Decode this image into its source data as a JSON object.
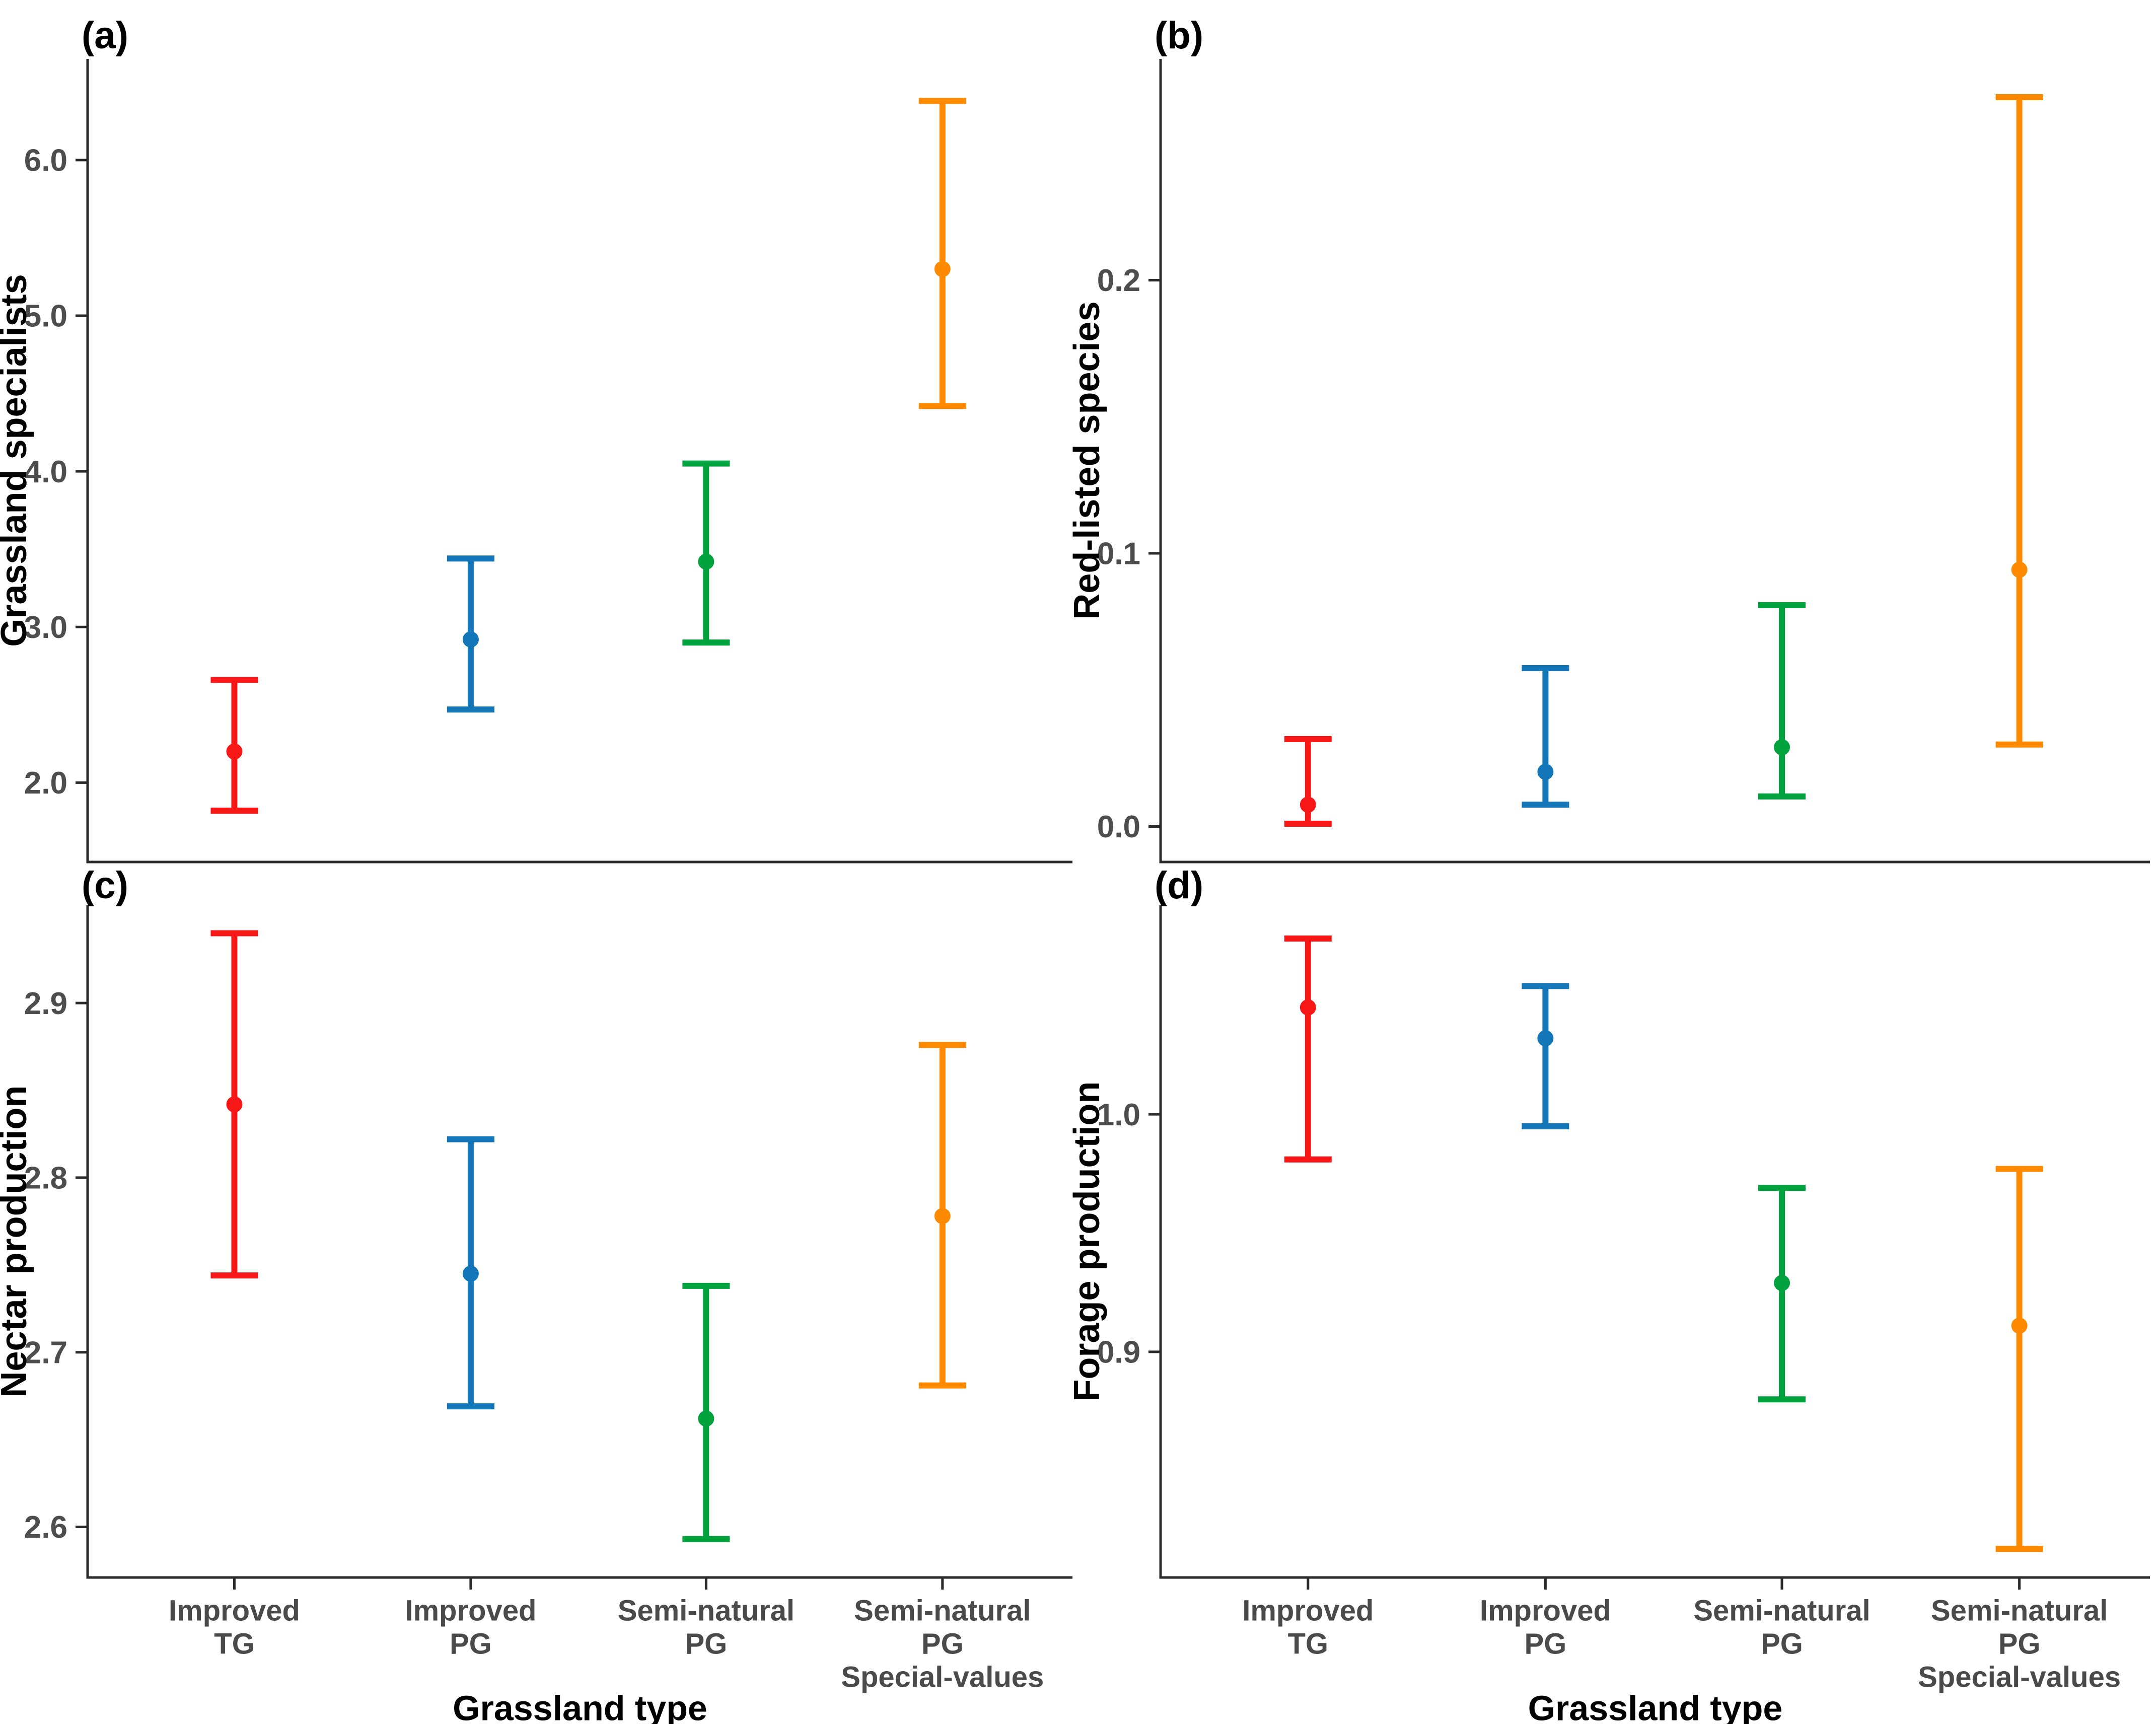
{
  "figure": {
    "background": "#ffffff",
    "axis_color": "#2b2b2b",
    "tick_label_color": "#4d4d4d",
    "category_label_color": "#4a4a4a",
    "title_color": "#000000",
    "x_axis_title": "Grassland type"
  },
  "categories": [
    {
      "name": "improved-tg",
      "label_lines": [
        "Improved",
        "TG"
      ],
      "color": "#f81717"
    },
    {
      "name": "improved-pg",
      "label_lines": [
        "Improved",
        "PG"
      ],
      "color": "#1276b8"
    },
    {
      "name": "semi-natural-pg",
      "label_lines": [
        "Semi-natural",
        "PG"
      ],
      "color": "#00a23e"
    },
    {
      "name": "semi-natural-pg-special-values",
      "label_lines": [
        "Semi-natural",
        "PG",
        "Special-values"
      ],
      "color": "#ff8a00"
    }
  ],
  "chart_data": [
    {
      "type": "scatter",
      "panel": "a",
      "letter": "(a)",
      "ylabel": "Grassland specialists",
      "xlabel": "Grassland type",
      "ylim": [
        1.49,
        6.65
      ],
      "grid": false,
      "yticks": [
        {
          "value": 2.0,
          "label": "2.0"
        },
        {
          "value": 3.0,
          "label": "3.0"
        },
        {
          "value": 4.0,
          "label": "4.0"
        },
        {
          "value": 5.0,
          "label": "5.0"
        },
        {
          "value": 6.0,
          "label": "6.0"
        }
      ],
      "points": [
        {
          "category": "Improved TG",
          "estimate": 2.2,
          "ci_low": 1.82,
          "ci_high": 2.66
        },
        {
          "category": "Improved PG",
          "estimate": 2.92,
          "ci_low": 2.47,
          "ci_high": 3.44
        },
        {
          "category": "Semi-natural PG",
          "estimate": 3.42,
          "ci_low": 2.9,
          "ci_high": 4.05
        },
        {
          "category": "Semi-natural PG Special-values",
          "estimate": 5.3,
          "ci_low": 4.42,
          "ci_high": 6.38
        }
      ]
    },
    {
      "type": "scatter",
      "panel": "b",
      "letter": "(b)",
      "ylabel": "Red-listed species",
      "xlabel": "Grassland type",
      "ylim": [
        -0.013,
        0.281
      ],
      "grid": false,
      "yticks": [
        {
          "value": 0.0,
          "label": "0.0"
        },
        {
          "value": 0.1,
          "label": "0.1"
        },
        {
          "value": 0.2,
          "label": "0.2"
        }
      ],
      "points": [
        {
          "category": "Improved TG",
          "estimate": 0.008,
          "ci_low": 0.001,
          "ci_high": 0.032
        },
        {
          "category": "Improved PG",
          "estimate": 0.02,
          "ci_low": 0.008,
          "ci_high": 0.058
        },
        {
          "category": "Semi-natural PG",
          "estimate": 0.029,
          "ci_low": 0.011,
          "ci_high": 0.081
        },
        {
          "category": "Semi-natural PG Special-values",
          "estimate": 0.094,
          "ci_low": 0.03,
          "ci_high": 0.267
        }
      ]
    },
    {
      "type": "scatter",
      "panel": "c",
      "letter": "(c)",
      "ylabel": "Nectar production",
      "xlabel": "Grassland type",
      "ylim": [
        2.571,
        2.956
      ],
      "grid": false,
      "yticks": [
        {
          "value": 2.6,
          "label": "2.6"
        },
        {
          "value": 2.7,
          "label": "2.7"
        },
        {
          "value": 2.8,
          "label": "2.8"
        },
        {
          "value": 2.9,
          "label": "2.9"
        }
      ],
      "points": [
        {
          "category": "Improved TG",
          "estimate": 2.842,
          "ci_low": 2.744,
          "ci_high": 2.94
        },
        {
          "category": "Improved PG",
          "estimate": 2.745,
          "ci_low": 2.669,
          "ci_high": 2.822
        },
        {
          "category": "Semi-natural PG",
          "estimate": 2.662,
          "ci_low": 2.593,
          "ci_high": 2.738
        },
        {
          "category": "Semi-natural PG Special-values",
          "estimate": 2.778,
          "ci_low": 2.681,
          "ci_high": 2.876
        }
      ]
    },
    {
      "type": "scatter",
      "panel": "d",
      "letter": "(d)",
      "ylabel": "Forage production",
      "xlabel": "Grassland type",
      "ylim": [
        0.805,
        1.088
      ],
      "grid": false,
      "yticks": [
        {
          "value": 0.9,
          "label": "0.9"
        },
        {
          "value": 1.0,
          "label": "1.0"
        }
      ],
      "points": [
        {
          "category": "Improved TG",
          "estimate": 1.045,
          "ci_low": 0.981,
          "ci_high": 1.074
        },
        {
          "category": "Improved PG",
          "estimate": 1.032,
          "ci_low": 0.995,
          "ci_high": 1.054
        },
        {
          "category": "Semi-natural PG",
          "estimate": 0.929,
          "ci_low": 0.88,
          "ci_high": 0.969
        },
        {
          "category": "Semi-natural PG Special-values",
          "estimate": 0.911,
          "ci_low": 0.817,
          "ci_high": 0.977
        }
      ]
    }
  ]
}
